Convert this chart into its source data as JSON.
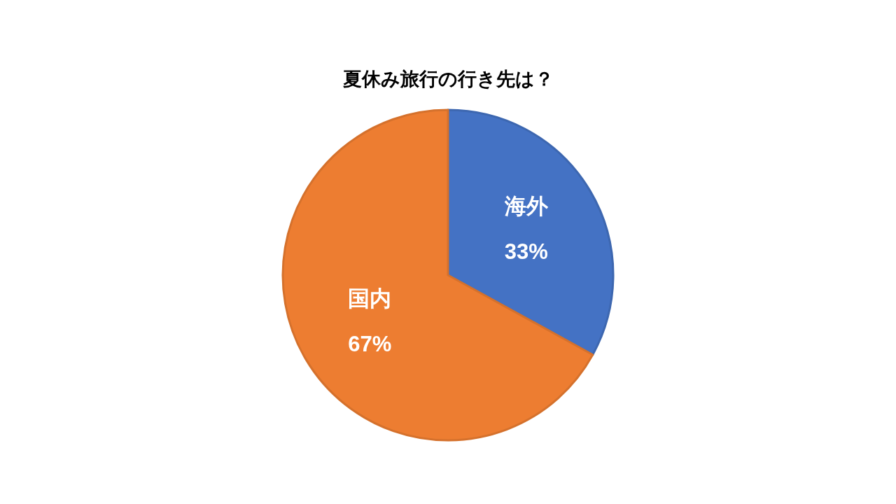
{
  "chart_data": {
    "type": "pie",
    "title": "夏休み旅行の行き先は？",
    "categories": [
      "海外",
      "国内"
    ],
    "values": [
      33,
      67
    ],
    "colors": [
      "#4472c4",
      "#ed7d31"
    ],
    "value_labels": [
      "33%",
      "67%"
    ],
    "legend": false
  }
}
